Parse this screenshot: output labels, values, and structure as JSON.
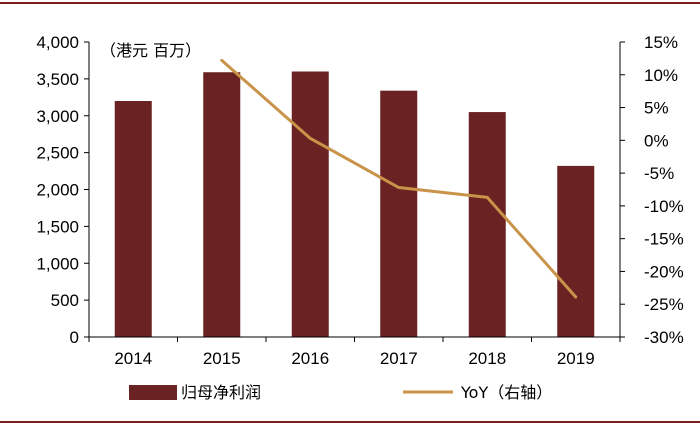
{
  "colors": {
    "bar": "#6b2222",
    "line": "#c9944a",
    "rule": "#7a1d1d",
    "axis": "#000000"
  },
  "chart_data": {
    "type": "bar",
    "categories": [
      "2014",
      "2015",
      "2016",
      "2017",
      "2018",
      "2019"
    ],
    "series": [
      {
        "name": "归母净利润",
        "type": "bar",
        "axis": "left",
        "values": [
          3200,
          3590,
          3600,
          3340,
          3050,
          2320
        ]
      },
      {
        "name": "YoY（右轴）",
        "type": "line",
        "axis": "right",
        "values": [
          null,
          12.2,
          0.3,
          -7.2,
          -8.7,
          -23.9
        ]
      }
    ],
    "unit_label": "（港元  百万）",
    "y_left": {
      "lim": [
        0,
        4000
      ],
      "ticks": [
        "0",
        "500",
        "1,000",
        "1,500",
        "2,000",
        "2,500",
        "3,000",
        "3,500",
        "4,000"
      ]
    },
    "y_right": {
      "lim": [
        -30,
        15
      ],
      "ticks": [
        "-30%",
        "-25%",
        "-20%",
        "-15%",
        "-10%",
        "-5%",
        "0%",
        "5%",
        "10%",
        "15%"
      ]
    },
    "legend_placement": "bottom",
    "grid": false
  }
}
